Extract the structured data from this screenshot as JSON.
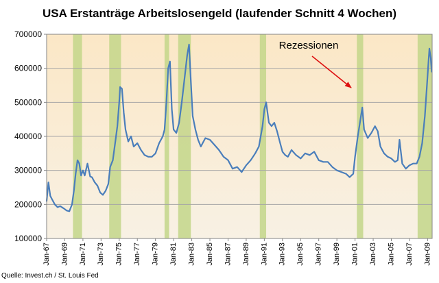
{
  "chart_data": {
    "type": "line",
    "title": "USA Erstanträge Arbeitslosengeld (laufender Schnitt 4 Wochen)",
    "source": "Quelle: Invest.ch / St. Louis Fed",
    "annotation": "Rezessionen",
    "xlabel": "",
    "ylabel": "",
    "xlim": [
      1967.0,
      2009.5
    ],
    "ylim": [
      100000,
      700000
    ],
    "y_ticks": [
      100000,
      200000,
      300000,
      400000,
      500000,
      600000,
      700000
    ],
    "y_tick_labels": [
      "100000",
      "200000",
      "300000",
      "400000",
      "500000",
      "600000",
      "700000"
    ],
    "x_ticks": [
      1967,
      1969,
      1971,
      1973,
      1975,
      1977,
      1979,
      1981,
      1983,
      1985,
      1987,
      1989,
      1991,
      1993,
      1995,
      1997,
      1999,
      2001,
      2003,
      2005,
      2007,
      2009
    ],
    "x_tick_labels": [
      "Jan-67",
      "Jan-69",
      "Jan-71",
      "Jan-73",
      "Jan-75",
      "Jan-77",
      "Jan-79",
      "Jan-81",
      "Jan-83",
      "Jan-85",
      "Jan-87",
      "Jan-89",
      "Jan-91",
      "Jan-93",
      "Jan-95",
      "Jan-97",
      "Jan-99",
      "Jan-01",
      "Jan-03",
      "Jan-05",
      "Jan-07",
      "Jan-09"
    ],
    "grid": true,
    "legend": "none",
    "recessions": [
      [
        1969.9,
        1970.9
      ],
      [
        1973.9,
        1975.2
      ],
      [
        1980.0,
        1980.5
      ],
      [
        1981.5,
        1982.9
      ],
      [
        1990.5,
        1991.2
      ],
      [
        2001.2,
        2001.9
      ],
      [
        2007.9,
        2009.5
      ]
    ],
    "series": [
      {
        "x": [
          1967.0,
          1967.2,
          1967.4,
          1967.6,
          1967.9,
          1968.2,
          1968.5,
          1968.9,
          1969.2,
          1969.5,
          1969.8,
          1970.0,
          1970.2,
          1970.4,
          1970.6,
          1970.8,
          1971.0,
          1971.2,
          1971.5,
          1971.8,
          1972.0,
          1972.3,
          1972.6,
          1972.9,
          1973.2,
          1973.5,
          1973.8,
          1974.0,
          1974.3,
          1974.6,
          1974.8,
          1975.0,
          1975.1,
          1975.3,
          1975.5,
          1975.7,
          1976.0,
          1976.3,
          1976.6,
          1977.0,
          1977.4,
          1977.8,
          1978.2,
          1978.6,
          1979.0,
          1979.4,
          1979.8,
          1980.0,
          1980.2,
          1980.4,
          1980.6,
          1980.8,
          1981.0,
          1981.3,
          1981.6,
          1981.9,
          1982.2,
          1982.5,
          1982.7,
          1982.9,
          1983.1,
          1983.4,
          1983.7,
          1984.0,
          1984.5,
          1985.0,
          1985.5,
          1986.0,
          1986.5,
          1987.0,
          1987.5,
          1988.0,
          1988.5,
          1989.0,
          1989.5,
          1990.0,
          1990.4,
          1990.8,
          1991.0,
          1991.2,
          1991.5,
          1991.8,
          1992.1,
          1992.4,
          1992.7,
          1993.0,
          1993.3,
          1993.6,
          1994.0,
          1994.5,
          1995.0,
          1995.5,
          1996.0,
          1996.5,
          1997.0,
          1997.5,
          1998.0,
          1998.5,
          1999.0,
          1999.5,
          2000.0,
          2000.4,
          2000.8,
          2001.0,
          2001.3,
          2001.6,
          2001.8,
          2002.0,
          2002.4,
          2002.8,
          2003.2,
          2003.5,
          2003.8,
          2004.2,
          2004.6,
          2005.0,
          2005.4,
          2005.7,
          2005.9,
          2006.2,
          2006.6,
          2007.0,
          2007.4,
          2007.8,
          2008.1,
          2008.4,
          2008.7,
          2008.9,
          2009.1,
          2009.2,
          2009.35,
          2009.45
        ],
        "values": [
          210000,
          265000,
          225000,
          215000,
          200000,
          192000,
          195000,
          188000,
          182000,
          180000,
          200000,
          240000,
          290000,
          330000,
          320000,
          285000,
          300000,
          285000,
          320000,
          282000,
          280000,
          265000,
          255000,
          235000,
          228000,
          240000,
          260000,
          310000,
          330000,
          390000,
          430000,
          500000,
          545000,
          540000,
          470000,
          420000,
          385000,
          400000,
          370000,
          380000,
          360000,
          345000,
          340000,
          340000,
          350000,
          380000,
          400000,
          420000,
          500000,
          600000,
          620000,
          480000,
          420000,
          410000,
          440000,
          500000,
          570000,
          640000,
          670000,
          560000,
          460000,
          420000,
          390000,
          370000,
          395000,
          390000,
          375000,
          360000,
          340000,
          330000,
          305000,
          310000,
          295000,
          315000,
          330000,
          350000,
          370000,
          430000,
          480000,
          500000,
          440000,
          430000,
          440000,
          415000,
          385000,
          355000,
          345000,
          340000,
          360000,
          345000,
          335000,
          350000,
          345000,
          355000,
          330000,
          325000,
          325000,
          310000,
          300000,
          295000,
          290000,
          280000,
          290000,
          340000,
          400000,
          450000,
          485000,
          420000,
          395000,
          410000,
          430000,
          415000,
          370000,
          350000,
          340000,
          335000,
          325000,
          330000,
          390000,
          320000,
          305000,
          315000,
          320000,
          320000,
          340000,
          380000,
          460000,
          540000,
          620000,
          658000,
          630000,
          590000
        ]
      }
    ],
    "colors": {
      "plot_background": "#f7e8cc",
      "recession_band": "#c3d68a",
      "line": "#4a7ebb",
      "annotation_arrow": "#dd1111",
      "grid": "#a6a6a6",
      "axis": "#868686"
    }
  }
}
